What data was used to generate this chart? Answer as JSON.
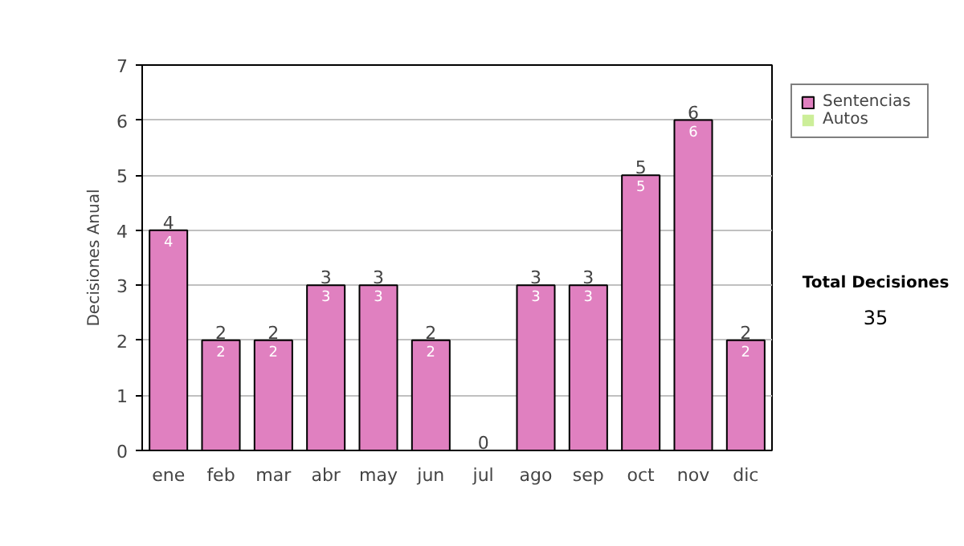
{
  "chart_data": {
    "type": "bar",
    "stacked": true,
    "ylabel": "Decisiones Anual",
    "categories": [
      "ene",
      "feb",
      "mar",
      "abr",
      "may",
      "jun",
      "jul",
      "ago",
      "sep",
      "oct",
      "nov",
      "dic"
    ],
    "series": [
      {
        "name": "Sentencias",
        "color": "#e080c0",
        "values": [
          4,
          2,
          2,
          3,
          3,
          2,
          0,
          3,
          3,
          5,
          6,
          2
        ],
        "value_labels": [
          "4",
          "2",
          "2",
          "3",
          "3",
          "2",
          null,
          "3",
          "3",
          "5",
          "6",
          "2"
        ]
      },
      {
        "name": "Autos",
        "color": "#ccee99",
        "values": [
          0,
          0,
          0,
          0,
          0,
          0,
          0,
          0,
          0,
          0,
          0,
          0
        ]
      }
    ],
    "totals": [
      "4",
      "2",
      "2",
      "3",
      "3",
      "2",
      "0",
      "3",
      "3",
      "5",
      "6",
      "2"
    ],
    "ylim": [
      0,
      7
    ],
    "yticks": [
      0,
      1,
      2,
      3,
      4,
      5,
      6,
      7
    ],
    "grid": "y",
    "legend": "right",
    "annotations": [
      "Total Decisiones",
      "35"
    ]
  }
}
